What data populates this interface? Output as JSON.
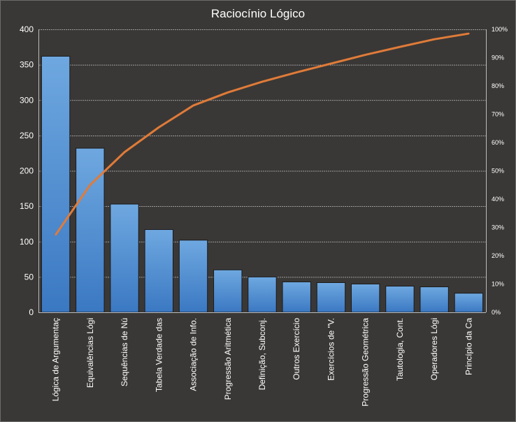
{
  "chart_data": {
    "type": "bar",
    "title": "Raciocínio  Lógico",
    "categories": [
      "Lógica de Argumentaç",
      "Equivalências Lógi",
      "Sequências de Nú",
      "Tabela Verdade das",
      "Associação de Info.",
      "Progressão Aritmética",
      "Definição, Subconj.",
      "Outros Exercício",
      "Exercícios de \"V.",
      "Progressão Geométrica",
      "Tautologia, Cont.",
      "Operadores Lógi",
      "Princípio da Ca"
    ],
    "series": [
      {
        "type": "bar",
        "values": [
          362,
          232,
          153,
          117,
          102,
          60,
          50,
          43,
          42,
          40,
          37,
          36,
          27
        ]
      },
      {
        "type": "line",
        "axis": "secondary",
        "values": [
          27.4,
          45.0,
          56.6,
          65.4,
          73.1,
          77.7,
          81.5,
          84.8,
          87.9,
          91.0,
          93.8,
          96.5,
          98.5
        ]
      }
    ],
    "ylim": [
      0,
      400
    ],
    "yticks": [
      0,
      50,
      100,
      150,
      200,
      250,
      300,
      350,
      400
    ],
    "y2lim": [
      0,
      100
    ],
    "y2ticks": [
      "0%",
      "10%",
      "20%",
      "30%",
      "40%",
      "50%",
      "60%",
      "70%",
      "80%",
      "90%",
      "100%"
    ],
    "grid": true,
    "legend": "none",
    "colors": {
      "background": "#3a3836",
      "bar_top": "#6fa8e0",
      "bar_bottom": "#3a78c2",
      "bar_border": "#1a1a1a",
      "line": "#e07b39",
      "grid": "#bdbdbd",
      "text": "#ffffff"
    }
  }
}
